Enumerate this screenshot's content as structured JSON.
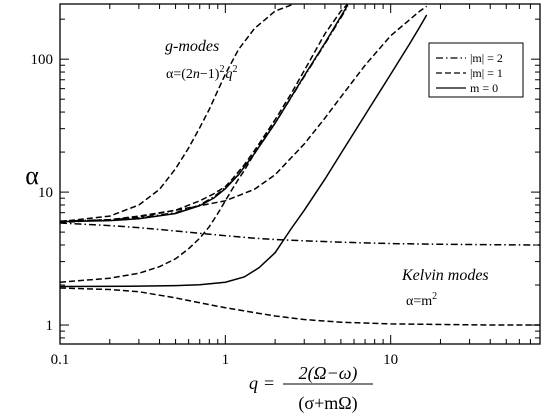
{
  "chart_data": {
    "type": "line",
    "xscale": "log",
    "yscale": "log",
    "xlim": [
      0.1,
      80
    ],
    "ylim": [
      0.72,
      260
    ],
    "x_ticks": [
      0.1,
      1,
      10
    ],
    "x_tick_labels": [
      "0.1",
      "1",
      "10"
    ],
    "y_ticks": [
      1,
      10,
      100
    ],
    "y_tick_labels": [
      "1",
      "10",
      "100"
    ],
    "ylabel": "α",
    "xlabel": {
      "lhs": "q",
      "eq": "=",
      "numerator": "2(Ω−ω)",
      "denominator": "(σ+mΩ)"
    },
    "grid": false,
    "legend": {
      "position": "top-right",
      "entries": [
        {
          "label": "|m| = 2",
          "style": "dashdot"
        },
        {
          "label": "|m| = 1",
          "style": "dashed"
        },
        {
          "label": "m = 0",
          "style": "solid"
        }
      ]
    },
    "annotations": {
      "g_modes_title": "g-modes",
      "g_modes_formula_a": "α=(2",
      "g_modes_formula_n1": "n",
      "g_modes_formula_b": "−1)",
      "g_modes_formula_sup1": "2",
      "g_modes_formula_q": "q",
      "g_modes_formula_sup2": "2",
      "kelvin_title": "Kelvin modes",
      "kelvin_formula_a": "α=m",
      "kelvin_formula_sup": "2"
    },
    "series": [
      {
        "style": "solid",
        "x": [
          0.1,
          0.2,
          0.3,
          0.5,
          0.7,
          0.85,
          1.0,
          1.2,
          1.5,
          2.0,
          3.0,
          4.0,
          5.0,
          5.5
        ],
        "y": [
          6.0,
          6.1,
          6.3,
          6.9,
          7.9,
          9.0,
          10.6,
          13.5,
          19.5,
          33,
          75,
          132,
          210,
          255
        ]
      },
      {
        "style": "solid",
        "x": [
          0.1,
          0.3,
          0.5,
          0.7,
          1.0,
          1.3,
          1.6,
          2.0,
          2.5,
          3.0,
          4.0,
          5.0,
          7.0,
          10.0,
          13.0,
          15.0,
          16.5
        ],
        "y": [
          1.95,
          1.96,
          1.98,
          2.01,
          2.1,
          2.3,
          2.7,
          3.5,
          5.3,
          7.3,
          12.5,
          19.5,
          38,
          77,
          130,
          175,
          215
        ]
      },
      {
        "style": "dashed",
        "x": [
          0.1,
          0.2,
          0.3,
          0.4,
          0.5,
          0.6,
          0.7,
          0.8,
          0.9,
          1.0,
          1.2,
          1.5,
          2.0,
          2.6
        ],
        "y": [
          6.0,
          6.6,
          8.0,
          10.5,
          15.0,
          21.5,
          30.5,
          42,
          58,
          77,
          118,
          170,
          230,
          260
        ]
      },
      {
        "style": "dashed",
        "x": [
          0.1,
          0.2,
          0.3,
          0.5,
          0.7,
          0.85,
          1.0,
          1.1,
          1.3,
          1.5,
          2.0,
          2.5,
          3.0,
          4.0,
          5.0,
          5.5
        ],
        "y": [
          6.0,
          6.2,
          6.5,
          7.3,
          8.6,
          9.7,
          11.0,
          12.5,
          16.0,
          20.5,
          35,
          55,
          82,
          155,
          230,
          260
        ]
      },
      {
        "style": "dashed",
        "x": [
          0.1,
          0.2,
          0.3,
          0.5,
          0.7,
          1.0,
          1.5,
          2.0,
          3.0,
          4.0,
          5.0,
          7.0,
          10.0,
          15.0,
          16.5
        ],
        "y": [
          5.9,
          6.2,
          6.6,
          7.3,
          7.9,
          8.6,
          10.5,
          13.5,
          23,
          36,
          52,
          90,
          150,
          230,
          250
        ]
      },
      {
        "style": "dashed",
        "x": [
          0.1,
          0.2,
          0.3,
          0.4,
          0.5,
          0.6,
          0.7,
          0.8,
          0.9,
          1.0,
          1.1,
          1.2,
          1.3,
          1.5,
          1.7,
          2.0
        ],
        "y": [
          2.1,
          2.25,
          2.45,
          2.75,
          3.15,
          3.75,
          4.5,
          5.5,
          6.9,
          8.6,
          10.5,
          12.5,
          14.5,
          19.5,
          25.5,
          35
        ]
      },
      {
        "style": "dashed",
        "x": [
          0.1,
          0.2,
          0.3,
          0.5,
          0.7,
          1.0,
          1.5,
          2.0,
          3.0,
          5.0,
          10.0,
          20.0,
          40.0,
          80.0
        ],
        "y": [
          1.9,
          1.85,
          1.78,
          1.6,
          1.47,
          1.35,
          1.24,
          1.17,
          1.1,
          1.05,
          1.02,
          1.01,
          1.0,
          1.0
        ]
      },
      {
        "style": "dashdot",
        "x": [
          0.1,
          0.2,
          0.3,
          0.5,
          0.7,
          1.0,
          1.5,
          2.0,
          3.0,
          5.0,
          10.0,
          20.0,
          40.0,
          80.0
        ],
        "y": [
          5.85,
          5.6,
          5.4,
          5.1,
          4.9,
          4.7,
          4.5,
          4.4,
          4.3,
          4.2,
          4.1,
          4.05,
          4.02,
          4.0
        ]
      },
      {
        "style": "dashdot",
        "x": [
          0.1,
          0.2,
          0.3,
          0.5,
          0.7,
          0.85,
          1.0,
          1.2,
          1.5,
          2.0,
          3.0,
          4.0,
          5.0,
          5.5
        ],
        "y": [
          6.05,
          6.2,
          6.4,
          7.0,
          8.0,
          9.2,
          10.8,
          13.5,
          19.5,
          33,
          74,
          130,
          205,
          250
        ]
      }
    ]
  }
}
